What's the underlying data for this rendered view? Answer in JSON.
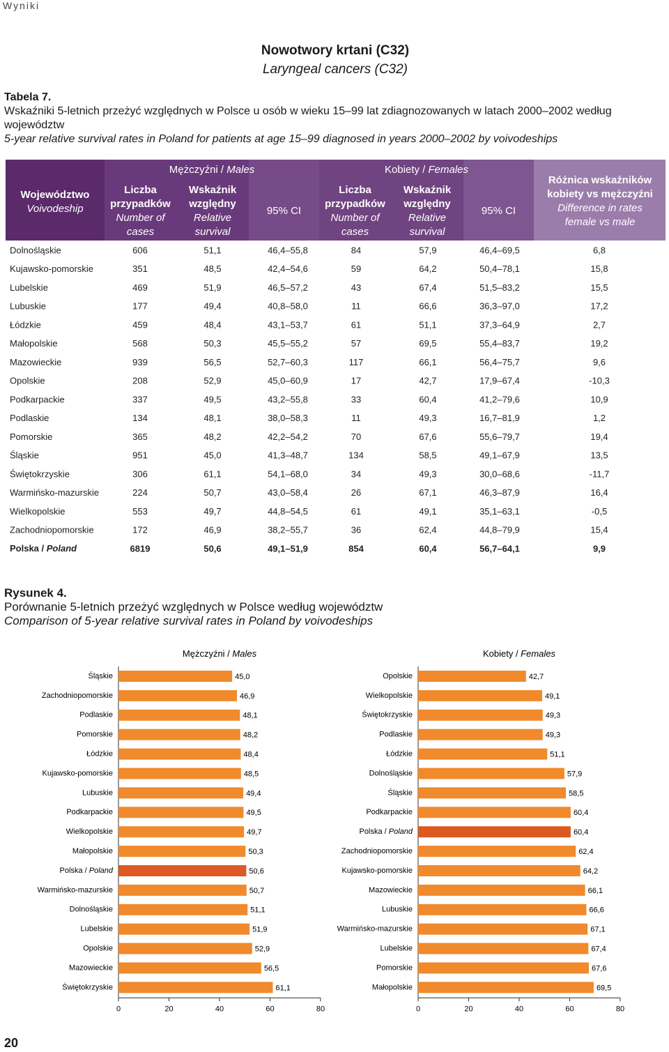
{
  "header": {
    "section": "Wyniki",
    "title": "Nowotwory krtani (C32)",
    "subtitle": "Laryngeal cancers (C32)"
  },
  "table": {
    "label": "Tabela 7.",
    "caption": "Wskaźniki 5-letnich przeżyć względnych w Polsce u osób w wieku 15–99 lat zdiagnozowanych w latach 2000–2002 według województw",
    "caption_en": "5-year relative survival rates in Poland for patients at age 15–99 diagnosed in years 2000–2002 by voivodeships",
    "columns": {
      "region": {
        "pl": "Województwo",
        "en": "Voivodeship"
      },
      "males": "Mężczyźni / Males",
      "females": "Kobiety / Females",
      "cases": {
        "pl": "Liczba przypadków",
        "en": "Number of cases"
      },
      "survival": {
        "pl": "Wskaźnik względny",
        "en": "Relative survival"
      },
      "ci": "95% CI",
      "difference": {
        "pl": "Różnica wskaźników kobiety vs mężczyźni",
        "en": "Difference in rates female vs male"
      }
    },
    "rows": [
      [
        "Dolnośląskie",
        "606",
        "51,1",
        "46,4–55,8",
        "84",
        "57,9",
        "46,4–69,5",
        "6,8"
      ],
      [
        "Kujawsko-pomorskie",
        "351",
        "48,5",
        "42,4–54,6",
        "59",
        "64,2",
        "50,4–78,1",
        "15,8"
      ],
      [
        "Lubelskie",
        "469",
        "51,9",
        "46,5–57,2",
        "43",
        "67,4",
        "51,5–83,2",
        "15,5"
      ],
      [
        "Lubuskie",
        "177",
        "49,4",
        "40,8–58,0",
        "11",
        "66,6",
        "36,3–97,0",
        "17,2"
      ],
      [
        "Łódzkie",
        "459",
        "48,4",
        "43,1–53,7",
        "61",
        "51,1",
        "37,3–64,9",
        "2,7"
      ],
      [
        "Małopolskie",
        "568",
        "50,3",
        "45,5–55,2",
        "57",
        "69,5",
        "55,4–83,7",
        "19,2"
      ],
      [
        "Mazowieckie",
        "939",
        "56,5",
        "52,7–60,3",
        "117",
        "66,1",
        "56,4–75,7",
        "9,6"
      ],
      [
        "Opolskie",
        "208",
        "52,9",
        "45,0–60,9",
        "17",
        "42,7",
        "17,9–67,4",
        "-10,3"
      ],
      [
        "Podkarpackie",
        "337",
        "49,5",
        "43,2–55,8",
        "33",
        "60,4",
        "41,2–79,6",
        "10,9"
      ],
      [
        "Podlaskie",
        "134",
        "48,1",
        "38,0–58,3",
        "11",
        "49,3",
        "16,7–81,9",
        "1,2"
      ],
      [
        "Pomorskie",
        "365",
        "48,2",
        "42,2–54,2",
        "70",
        "67,6",
        "55,6–79,7",
        "19,4"
      ],
      [
        "Śląskie",
        "951",
        "45,0",
        "41,3–48,7",
        "134",
        "58,5",
        "49,1–67,9",
        "13,5"
      ],
      [
        "Świętokrzyskie",
        "306",
        "61,1",
        "54,1–68,0",
        "34",
        "49,3",
        "30,0–68,6",
        "-11,7"
      ],
      [
        "Warmińsko-mazurskie",
        "224",
        "50,7",
        "43,0–58,4",
        "26",
        "67,1",
        "46,3–87,9",
        "16,4"
      ],
      [
        "Wielkopolskie",
        "553",
        "49,7",
        "44,8–54,5",
        "61",
        "49,1",
        "35,1–63,1",
        "-0,5"
      ],
      [
        "Zachodniopomorskie",
        "172",
        "46,9",
        "38,2–55,7",
        "36",
        "62,4",
        "44,8–79,9",
        "15,4"
      ],
      [
        "Polska / Poland",
        "6819",
        "50,6",
        "49,1–51,9",
        "854",
        "60,4",
        "56,7–64,1",
        "9,9"
      ]
    ]
  },
  "figure": {
    "label": "Rysunek 4.",
    "caption": "Porównanie 5-letnich przeżyć względnych w Polsce według województw",
    "caption_en": "Comparison of 5-year relative survival rates in Poland by voivodeships"
  },
  "chart_data": [
    {
      "type": "bar",
      "orientation": "horizontal",
      "title": "Mężczyźni / Males",
      "categories": [
        "Śląskie",
        "Zachodniopomorskie",
        "Podlaskie",
        "Pomorskie",
        "Łódzkie",
        "Kujawsko-pomorskie",
        "Lubuskie",
        "Podkarpackie",
        "Wielkopolskie",
        "Małopolskie",
        "Polska / Poland",
        "Warmińsko-mazurskie",
        "Dolnośląskie",
        "Lubelskie",
        "Opolskie",
        "Mazowieckie",
        "Świętokrzyskie"
      ],
      "values": [
        45.0,
        46.9,
        48.1,
        48.2,
        48.4,
        48.5,
        49.4,
        49.5,
        49.7,
        50.3,
        50.6,
        50.7,
        51.1,
        51.9,
        52.9,
        56.5,
        61.1
      ],
      "value_labels": [
        "45,0",
        "46,9",
        "48,1",
        "48,2",
        "48,4",
        "48,5",
        "49,4",
        "49,5",
        "49,7",
        "50,3",
        "50,6",
        "50,7",
        "51,1",
        "51,9",
        "52,9",
        "56,5",
        "61,1"
      ],
      "colors": [
        "#f08a2c",
        "#f08a2c",
        "#f08a2c",
        "#f08a2c",
        "#f08a2c",
        "#f08a2c",
        "#f08a2c",
        "#f08a2c",
        "#f08a2c",
        "#f08a2c",
        "#dc5a22",
        "#f08a2c",
        "#f08a2c",
        "#f08a2c",
        "#f08a2c",
        "#f08a2c",
        "#f08a2c"
      ],
      "xlim": [
        0,
        80
      ],
      "xticks": [
        0,
        20,
        40,
        60,
        80
      ]
    },
    {
      "type": "bar",
      "orientation": "horizontal",
      "title": "Kobiety / Females",
      "categories": [
        "Opolskie",
        "Wielkopolskie",
        "Świętokrzyskie",
        "Podlaskie",
        "Łódzkie",
        "Dolnośląskie",
        "Śląskie",
        "Podkarpackie",
        "Polska / Poland",
        "Zachodniopomorskie",
        "Kujawsko-pomorskie",
        "Mazowieckie",
        "Lubuskie",
        "Warmińsko-mazurskie",
        "Lubelskie",
        "Pomorskie",
        "Małopolskie"
      ],
      "values": [
        42.7,
        49.1,
        49.3,
        49.3,
        51.1,
        57.9,
        58.5,
        60.4,
        60.4,
        62.4,
        64.2,
        66.1,
        66.6,
        67.1,
        67.4,
        67.6,
        69.5
      ],
      "value_labels": [
        "42,7",
        "49,1",
        "49,3",
        "49,3",
        "51,1",
        "57,9",
        "58,5",
        "60,4",
        "60,4",
        "62,4",
        "64,2",
        "66,1",
        "66,6",
        "67,1",
        "67,4",
        "67,6",
        "69,5"
      ],
      "colors": [
        "#f08a2c",
        "#f08a2c",
        "#f08a2c",
        "#f08a2c",
        "#f08a2c",
        "#f08a2c",
        "#f08a2c",
        "#f08a2c",
        "#dc5a22",
        "#f08a2c",
        "#f08a2c",
        "#f08a2c",
        "#f08a2c",
        "#f08a2c",
        "#f08a2c",
        "#f08a2c",
        "#f08a2c"
      ],
      "xlim": [
        0,
        80
      ],
      "xticks": [
        0,
        20,
        40,
        60,
        80
      ]
    }
  ],
  "page_number": "20"
}
